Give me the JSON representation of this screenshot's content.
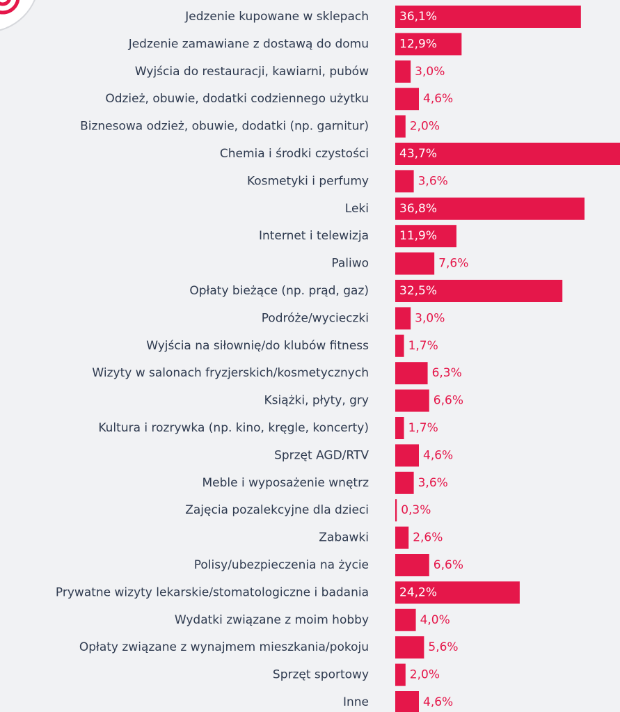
{
  "chart_data": {
    "type": "bar",
    "orientation": "horizontal",
    "color": "#e5174a",
    "categories": [
      "Jedzenie kupowane w sklepach",
      "Jedzenie zamawiane z dostawą do domu",
      "Wyjścia do restauracji, kawiarni, pubów",
      "Odzież, obuwie, dodatki codziennego użytku",
      "Biznesowa odzież, obuwie, dodatki (np. garnitur)",
      "Chemia i środki czystości",
      "Kosmetyki i perfumy",
      "Leki",
      "Internet i telewizja",
      "Paliwo",
      "Opłaty bieżące (np. prąd, gaz)",
      "Podróże/wycieczki",
      "Wyjścia na siłownię/do klubów fitness",
      "Wizyty w salonach fryzjerskich/kosmetycznych",
      "Książki, płyty, gry",
      "Kultura i rozrywka (np. kino, kręgle, koncerty)",
      "Sprzęt AGD/RTV",
      "Meble i wyposażenie wnętrz",
      "Zajęcia pozalekcyjne dla dzieci",
      "Zabawki",
      "Polisy/ubezpieczenia na życie",
      "Prywatne wizyty lekarskie/stomatologiczne i badania",
      "Wydatki związane z moim hobby",
      "Opłaty związane z wynajmem mieszkania/pokoju",
      "Sprzęt sportowy",
      "Inne"
    ],
    "values": [
      36.1,
      12.9,
      3.0,
      4.6,
      2.0,
      43.7,
      3.6,
      36.8,
      11.9,
      7.6,
      32.5,
      3.0,
      1.7,
      6.3,
      6.6,
      1.7,
      4.6,
      3.6,
      0.3,
      2.6,
      6.6,
      24.2,
      4.0,
      5.6,
      2.0,
      4.6
    ],
    "value_labels": [
      "36,1%",
      "12,9%",
      "3,0%",
      "4,6%",
      "2,0%",
      "43,7%",
      "3,6%",
      "36,8%",
      "11,9%",
      "7,6%",
      "32,5%",
      "3,0%",
      "1,7%",
      "6,3%",
      "6,6%",
      "1,7%",
      "4,6%",
      "3,6%",
      "0,3%",
      "2,6%",
      "6,6%",
      "24,2%",
      "4,0%",
      "5,6%",
      "2,0%",
      "4,6%"
    ]
  }
}
